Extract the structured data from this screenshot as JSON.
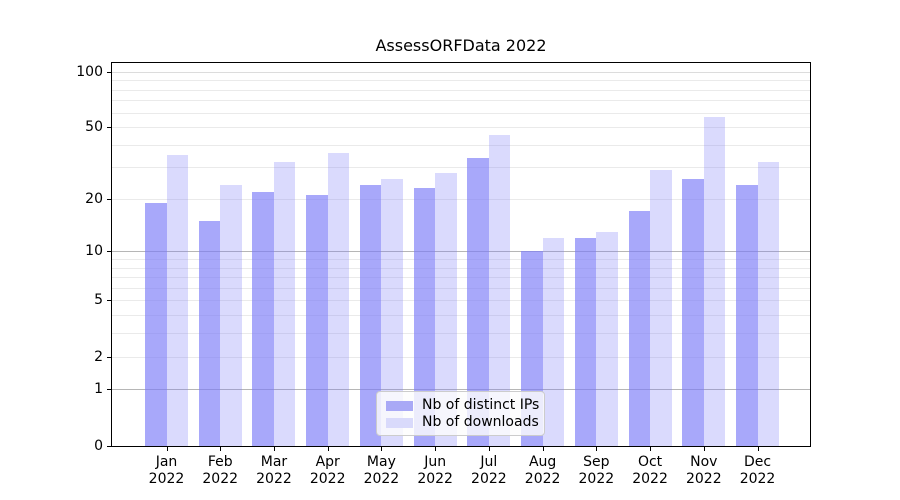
{
  "title": "AssessORFData 2022",
  "chart_data": {
    "type": "bar",
    "title": "AssessORFData 2022",
    "categories": [
      "Jan",
      "Feb",
      "Mar",
      "Apr",
      "May",
      "Jun",
      "Jul",
      "Aug",
      "Sep",
      "Oct",
      "Nov",
      "Dec"
    ],
    "category_year": "2022",
    "series": [
      {
        "name": "Nb of distinct IPs",
        "values": [
          19,
          15,
          22,
          21,
          24,
          23,
          34,
          10,
          12,
          17,
          26,
          24
        ]
      },
      {
        "name": "Nb of downloads",
        "values": [
          35,
          24,
          32,
          36,
          26,
          28,
          45,
          12,
          13,
          29,
          57,
          32
        ]
      }
    ],
    "y_axis": {
      "scale": "log1p",
      "tick_values": [
        0,
        1,
        2,
        5,
        10,
        20,
        50,
        100
      ],
      "tick_labels": [
        "0",
        "1",
        "2",
        "5",
        "10",
        "20",
        "50",
        "100"
      ],
      "range_top_value": 110
    },
    "grid": {
      "minor_values": [
        2,
        3,
        4,
        5,
        6,
        7,
        8,
        9,
        20,
        30,
        40,
        50,
        60,
        70,
        80,
        90
      ],
      "major_values": [
        1,
        10
      ],
      "upper_value": [
        100
      ],
      "grid_on": true
    },
    "legend_position": "lower center, inside axes",
    "xlabel": "",
    "ylabel": ""
  },
  "legend": {
    "items": [
      {
        "label": "Nb of distinct IPs",
        "swatch": "dark-purple"
      },
      {
        "label": "Nb of downloads",
        "swatch": "light-purple"
      }
    ]
  },
  "colors": {
    "bar_dark_rgba": "rgba(123,123,248,0.66)",
    "bar_light_rgba": "rgba(123,123,248,0.28)",
    "swatch_dark_hex": "#a9a9f6",
    "swatch_light_hex": "#d9dafb",
    "grid_minor_hex": "#eaeaea",
    "grid_major_hex": "#b6b6b6",
    "grid_upper_hex": "#dcdcdc",
    "axis_hex": "#000000",
    "background_hex": "#ffffff"
  }
}
